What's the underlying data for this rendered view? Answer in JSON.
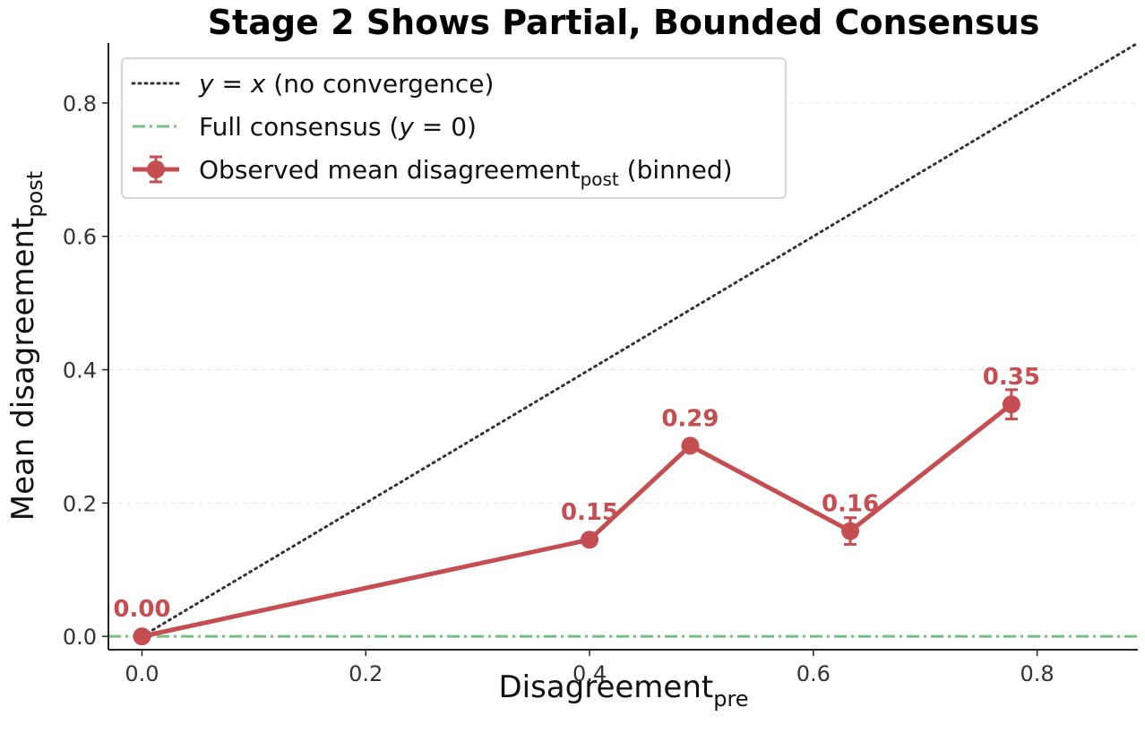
{
  "chart_data": {
    "type": "line",
    "title": "Stage 2 Shows Partial, Bounded Consensus",
    "xlabel": {
      "base": "Disagreement",
      "sub": "pre"
    },
    "ylabel": {
      "base": "Mean disagreement",
      "sub": "post"
    },
    "xlim": [
      -0.03,
      0.89
    ],
    "ylim": [
      -0.02,
      0.89
    ],
    "xticks": [
      0.0,
      0.2,
      0.4,
      0.6,
      0.8
    ],
    "xtick_labels": [
      "0.0",
      "0.2",
      "0.4",
      "0.6",
      "0.8"
    ],
    "yticks": [
      0.0,
      0.2,
      0.4,
      0.6,
      0.8
    ],
    "ytick_labels": [
      "0.0",
      "0.2",
      "0.4",
      "0.6",
      "0.8"
    ],
    "grid": "horizontal dashed",
    "legend_position": "top-left",
    "series": [
      {
        "name": "y = x (no convergence)",
        "legend": {
          "italic_y": "y",
          "eq": " = ",
          "italic_x": "x",
          "rest": " (no convergence)"
        },
        "style": "dotted",
        "color": "#333333",
        "x": [
          0.0,
          0.89
        ],
        "y": [
          0.0,
          0.89
        ]
      },
      {
        "name": "Full consensus (y = 0)",
        "legend": {
          "pre": "Full consensus (",
          "italic_y": "y",
          "rest": " = 0)"
        },
        "style": "dashdot",
        "color": "#74bf83",
        "y_constant": 0.0
      },
      {
        "name": "Observed mean disagreement_post (binned)",
        "legend": {
          "pre": "Observed mean disagreement",
          "sub": "post",
          "rest": " (binned)"
        },
        "style": "solid-marker",
        "color": "#c44e52",
        "x": [
          0.0,
          0.4,
          0.49,
          0.633,
          0.777
        ],
        "y": [
          0.0,
          0.145,
          0.286,
          0.158,
          0.348
        ],
        "yerr": [
          0.0,
          0.0,
          0.0,
          0.02,
          0.022
        ],
        "labels": [
          "0.00",
          "0.15",
          "0.29",
          "0.16",
          "0.35"
        ]
      }
    ]
  }
}
